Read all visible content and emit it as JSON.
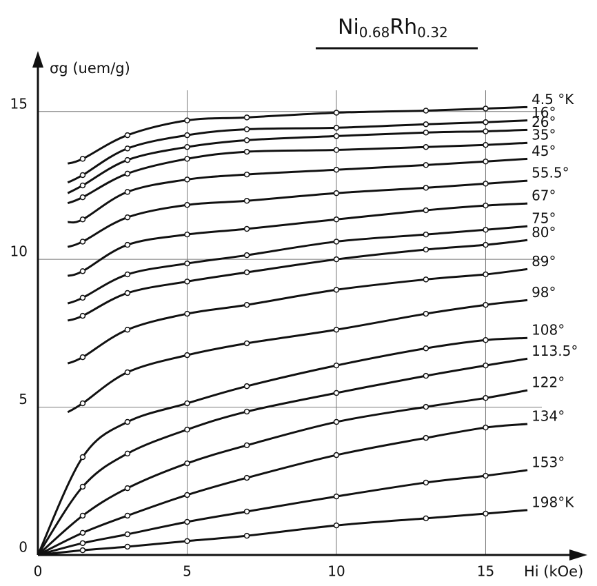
{
  "chart_data": {
    "type": "line",
    "title": [
      "Ni",
      "0.68",
      "Rh",
      "0.32"
    ],
    "y_label": "σg (uem/g)",
    "x_label": "Hi (kOe)",
    "xlim": [
      0,
      18.5
    ],
    "ylim": [
      0,
      17
    ],
    "xticks": [
      0,
      5,
      10,
      15
    ],
    "yticks": [
      0,
      5,
      10,
      15
    ],
    "grid": true,
    "series": [
      {
        "name": "4.5 °K",
        "color": "#111111",
        "x": [
          1,
          1.5,
          3,
          5,
          7,
          10,
          13,
          15,
          16.4
        ],
        "values": [
          13.24,
          13.4,
          14.2,
          14.7,
          14.8,
          14.96,
          15.03,
          15.1,
          15.15
        ]
      },
      {
        "name": "16°",
        "color": "#111111",
        "x": [
          1,
          1.5,
          3,
          5,
          7,
          10,
          13,
          15,
          16.4
        ],
        "values": [
          12.6,
          12.85,
          13.75,
          14.2,
          14.4,
          14.45,
          14.57,
          14.64,
          14.7
        ]
      },
      {
        "name": "26°",
        "color": "#111111",
        "x": [
          1,
          1.5,
          3,
          5,
          7,
          10,
          13,
          15,
          16.4
        ],
        "values": [
          12.24,
          12.5,
          13.36,
          13.8,
          14.03,
          14.17,
          14.29,
          14.33,
          14.38
        ]
      },
      {
        "name": "35°",
        "color": "#111111",
        "x": [
          1,
          1.5,
          3,
          5,
          7,
          10,
          13,
          15,
          16.4
        ],
        "values": [
          11.9,
          12.1,
          12.9,
          13.4,
          13.64,
          13.7,
          13.8,
          13.87,
          13.94
        ]
      },
      {
        "name": "45°",
        "color": "#111111",
        "x": [
          1,
          1.5,
          3,
          5,
          7,
          10,
          13,
          15,
          16.4
        ],
        "values": [
          11.26,
          11.35,
          12.28,
          12.7,
          12.87,
          13.03,
          13.19,
          13.31,
          13.4
        ]
      },
      {
        "name": "55.5°",
        "color": "#111111",
        "x": [
          1,
          1.5,
          3,
          5,
          7,
          10,
          13,
          15,
          16.4
        ],
        "values": [
          10.42,
          10.6,
          11.42,
          11.84,
          11.98,
          12.24,
          12.42,
          12.56,
          12.66
        ]
      },
      {
        "name": "67°",
        "color": "#111111",
        "x": [
          1,
          1.5,
          3,
          5,
          7,
          10,
          13,
          15,
          16.4
        ],
        "values": [
          9.44,
          9.6,
          10.49,
          10.84,
          11.03,
          11.35,
          11.66,
          11.82,
          11.89
        ]
      },
      {
        "name": "75°",
        "color": "#111111",
        "x": [
          1,
          1.5,
          3,
          5,
          7,
          10,
          13,
          15,
          16.4
        ],
        "values": [
          8.51,
          8.7,
          9.49,
          9.86,
          10.14,
          10.6,
          10.84,
          11.0,
          11.12
        ]
      },
      {
        "name": "80°",
        "color": "#111111",
        "x": [
          1,
          1.5,
          3,
          5,
          7,
          10,
          13,
          15,
          16.4
        ],
        "values": [
          7.93,
          8.09,
          8.86,
          9.25,
          9.56,
          10.0,
          10.33,
          10.49,
          10.65
        ]
      },
      {
        "name": "89°",
        "color": "#111111",
        "x": [
          1,
          1.5,
          3,
          5,
          7,
          10,
          13,
          15,
          16.4
        ],
        "values": [
          6.48,
          6.69,
          7.62,
          8.16,
          8.46,
          8.97,
          9.32,
          9.49,
          9.67
        ]
      },
      {
        "name": "98°",
        "color": "#111111",
        "x": [
          1,
          1.5,
          3,
          5,
          7,
          10,
          13,
          15,
          16.4
        ],
        "values": [
          4.83,
          5.13,
          6.18,
          6.76,
          7.16,
          7.62,
          8.16,
          8.46,
          8.62
        ]
      },
      {
        "name": "108°",
        "color": "#111111",
        "x": [
          0,
          1.5,
          3,
          5,
          7,
          10,
          13,
          15,
          16.4
        ],
        "values": [
          0,
          3.31,
          4.5,
          5.13,
          5.71,
          6.41,
          6.99,
          7.27,
          7.34
        ]
      },
      {
        "name": "113.5°",
        "color": "#111111",
        "x": [
          0,
          1.5,
          3,
          5,
          7,
          10,
          13,
          15,
          16.4
        ],
        "values": [
          0,
          2.31,
          3.43,
          4.24,
          4.85,
          5.48,
          6.06,
          6.41,
          6.64
        ]
      },
      {
        "name": "122°",
        "color": "#111111",
        "x": [
          0,
          1.5,
          3,
          5,
          7,
          10,
          13,
          15,
          16.4
        ],
        "values": [
          0,
          1.33,
          2.26,
          3.1,
          3.71,
          4.5,
          5.01,
          5.31,
          5.57
        ]
      },
      {
        "name": "134°",
        "color": "#111111",
        "x": [
          0,
          1.5,
          3,
          5,
          7,
          10,
          13,
          15,
          16.4
        ],
        "values": [
          0,
          0.75,
          1.33,
          2.03,
          2.61,
          3.38,
          3.96,
          4.31,
          4.43
        ]
      },
      {
        "name": "153°",
        "color": "#111111",
        "x": [
          0,
          1.5,
          3,
          5,
          7,
          10,
          13,
          15,
          16.4
        ],
        "values": [
          0,
          0.4,
          0.7,
          1.12,
          1.47,
          1.98,
          2.45,
          2.68,
          2.87
        ]
      },
      {
        "name": "198°K",
        "color": "#111111",
        "x": [
          0,
          1.5,
          3,
          5,
          7,
          10,
          13,
          15,
          16.4
        ],
        "values": [
          0,
          0.16,
          0.28,
          0.47,
          0.65,
          1.0,
          1.24,
          1.4,
          1.52
        ]
      }
    ]
  }
}
